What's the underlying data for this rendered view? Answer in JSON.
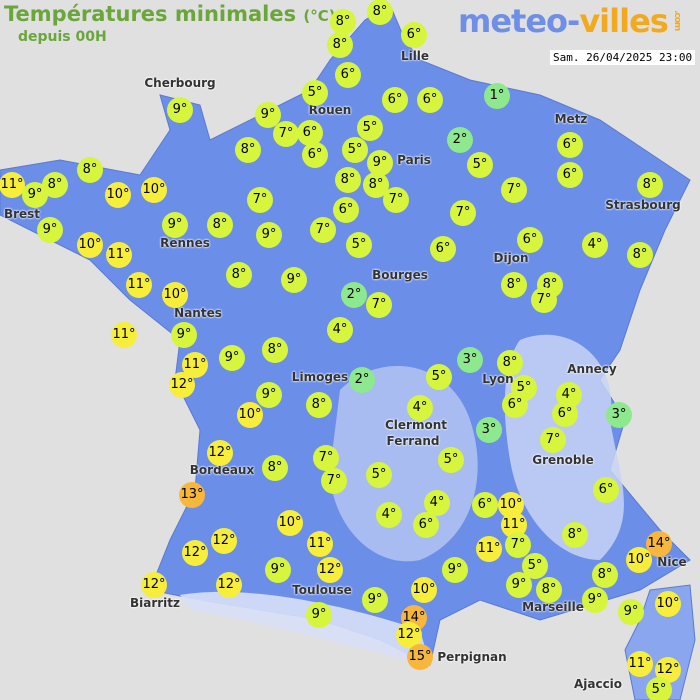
{
  "header": {
    "title": "Températures minimales",
    "unit": "(°C)",
    "subtitle": "depuis 00H",
    "logo_left": "meteo-",
    "logo_right": "villes",
    "logo_suffix": ".com",
    "datetime": "Sam. 26/04/2025 23:00"
  },
  "colors": {
    "land": "#6b8ee8",
    "mountain": "#c8d4f4",
    "background": "#e0e0e0",
    "cold": "#8ee88e",
    "mild": "#d6f53c",
    "warm": "#f7ee3c",
    "hot": "#f7b73c"
  },
  "cities": [
    "Cherbourg",
    "Lille",
    "Rouen",
    "Metz",
    "Paris",
    "Strasbourg",
    "Brest",
    "Rennes",
    "Dijon",
    "Bourges",
    "Nantes",
    "Limoges",
    "Annecy",
    "Lyon",
    "Clermont",
    "Ferrand",
    "Grenoble",
    "Bordeaux",
    "Nice",
    "Toulouse",
    "Biarritz",
    "Marseille",
    "Perpignan",
    "Ajaccio"
  ],
  "temperatures": [
    8,
    8,
    8,
    6,
    6,
    5,
    6,
    6,
    1,
    9,
    9,
    7,
    6,
    5,
    2,
    6,
    8,
    6,
    5,
    9,
    5,
    6,
    8,
    11,
    9,
    8,
    10,
    10,
    8,
    8,
    7,
    7,
    8,
    7,
    6,
    9,
    8,
    9,
    9,
    7,
    7,
    10,
    11,
    5,
    6,
    6,
    4,
    8,
    8,
    9,
    11,
    10,
    2,
    7,
    8,
    8,
    7,
    11,
    9,
    4,
    11,
    9,
    8,
    3,
    8,
    12,
    2,
    5,
    5,
    4,
    9,
    8,
    6,
    6,
    3,
    10,
    4,
    3,
    7,
    12,
    7,
    5,
    8,
    7,
    5,
    13,
    6,
    4,
    6,
    10,
    4,
    6,
    11,
    12,
    10,
    8,
    14,
    7,
    12,
    11,
    11,
    10,
    5,
    9,
    12,
    9,
    9,
    8,
    12,
    12,
    10,
    8,
    9,
    9,
    10,
    9,
    9,
    14,
    12,
    15,
    11,
    12,
    5
  ],
  "unit_symbol": "°"
}
